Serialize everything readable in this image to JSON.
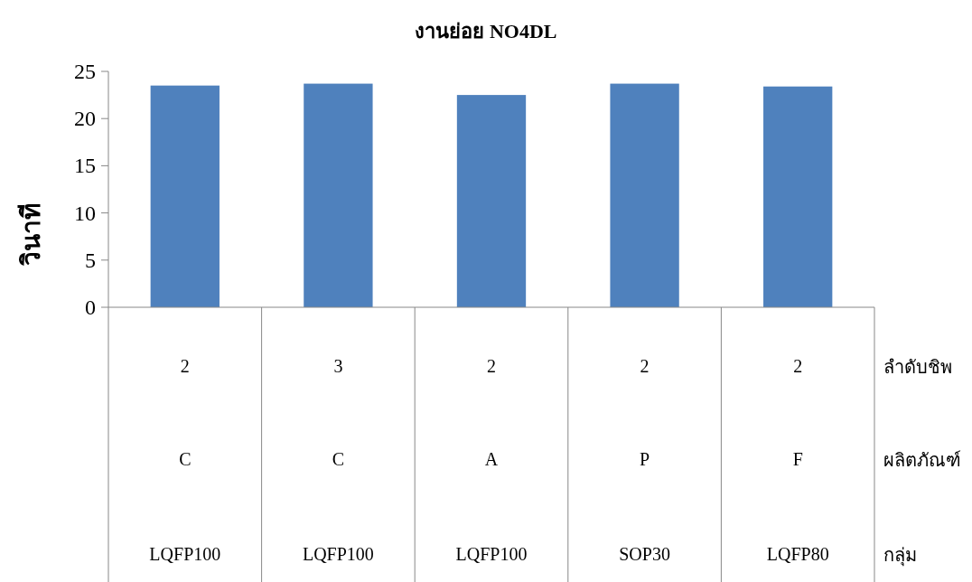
{
  "chart_data": {
    "type": "bar",
    "title": "งานย่อย NO4DL",
    "ylabel": "วินาที",
    "categories": [
      "2\nC\nLQFP100",
      "3\nC\nLQFP100",
      "2\nA\nLQFP100",
      "2\nP\nSOP30",
      "2\nF\nLQFP80"
    ],
    "values": [
      23.5,
      23.7,
      22.5,
      23.7,
      23.4
    ],
    "color": "#4f81bd",
    "ylim": [
      0,
      25
    ],
    "yticks": [
      0,
      5,
      10,
      15,
      20,
      25
    ],
    "grid": false,
    "annotations": [
      "ลำดับชิพ",
      "ผลิตภัณฑ์",
      "กลุ่ม"
    ]
  }
}
